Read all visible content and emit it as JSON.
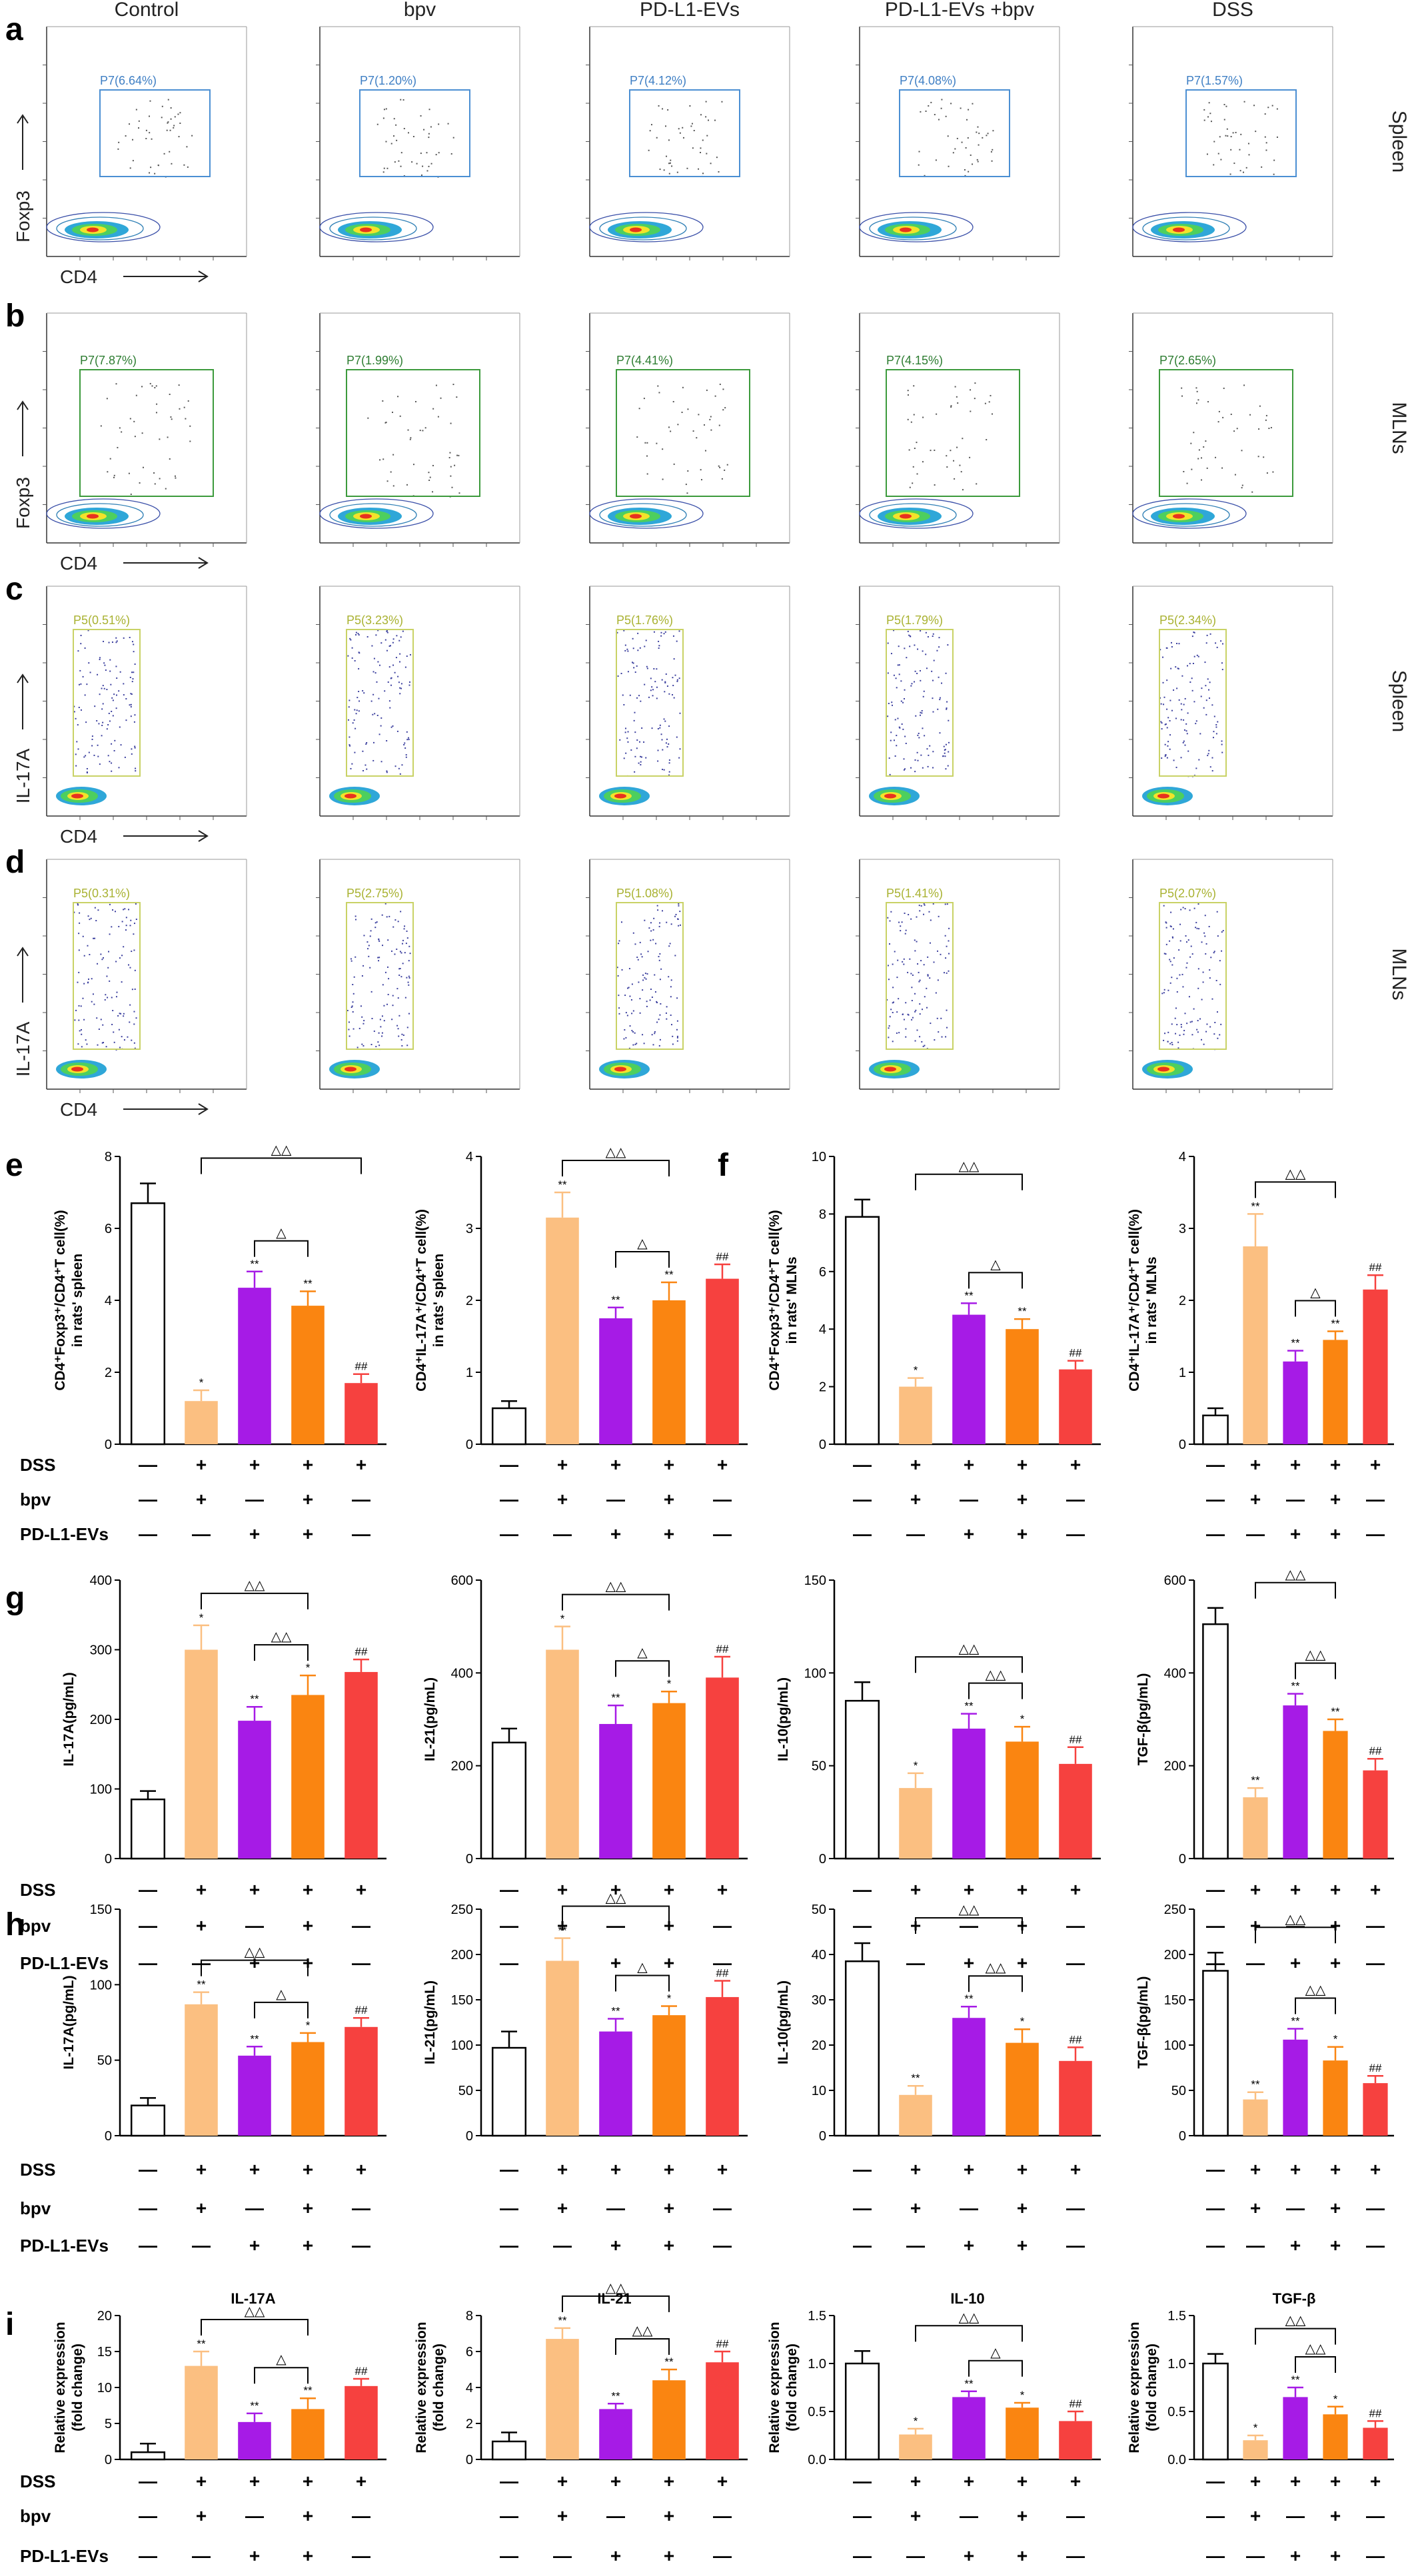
{
  "colors": {
    "control": "#ffffff",
    "bpv": "#fbbf81",
    "pdl1": "#a61be6",
    "pdl1_bpv": "#fa8511",
    "dss": "#f6413f",
    "gate_blue": "#4b8fd3",
    "gate_green": "#3c9a3c",
    "gate_yellow": "#c9d266",
    "label_blue": "#3f7fc4",
    "label_green": "#2e7d32",
    "label_yellow": "#a9b232"
  },
  "flow": {
    "column_titles": [
      "Control",
      "bpv",
      "PD-L1-EVs",
      "PD-L1-EVs +bpv",
      "DSS"
    ],
    "x_axis_label": "CD4",
    "rows": [
      {
        "letter": "a",
        "y_label": "Foxp3",
        "tissue": "Spleen",
        "gate_color": "blue",
        "gates": [
          "P7(6.64%)",
          "P7(1.20%)",
          "P7(4.12%)",
          "P7(4.08%)",
          "P7(1.57%)"
        ]
      },
      {
        "letter": "b",
        "y_label": "Foxp3",
        "tissue": "MLNs",
        "gate_color": "green",
        "gates": [
          "P7(7.87%)",
          "P7(1.99%)",
          "P7(4.41%)",
          "P7(4.15%)",
          "P7(2.65%)"
        ]
      },
      {
        "letter": "c",
        "y_label": "IL-17A",
        "tissue": "Spleen",
        "gate_color": "yellow",
        "gates": [
          "P5(0.51%)",
          "P5(3.23%)",
          "P5(1.76%)",
          "P5(1.79%)",
          "P5(2.34%)"
        ]
      },
      {
        "letter": "d",
        "y_label": "IL-17A",
        "tissue": "MLNs",
        "gate_color": "yellow",
        "gates": [
          "P5(0.31%)",
          "P5(2.75%)",
          "P5(1.08%)",
          "P5(1.41%)",
          "P5(2.07%)"
        ]
      }
    ]
  },
  "chart_data": [
    {
      "type": "bar",
      "panel": "e",
      "ylabel_lines": [
        "CD4⁺Foxp3⁺/CD4⁺T cell(%)",
        "in rats' spleen"
      ],
      "ylim": [
        0,
        8
      ],
      "yticks": [
        0,
        2,
        4,
        6,
        8
      ],
      "series": [
        {
          "values": [
            6.7,
            1.2,
            4.35,
            3.85,
            1.7
          ],
          "errors": [
            0.55,
            0.3,
            0.45,
            0.4,
            0.25
          ]
        }
      ],
      "star_labels": [
        "",
        "*",
        "**",
        "**",
        "##"
      ],
      "brackets": [
        {
          "from": 1,
          "to": 4,
          "label": "△△"
        },
        {
          "from": 2,
          "to": 3,
          "label": "△"
        }
      ]
    },
    {
      "type": "bar",
      "panel": "e2",
      "ylabel_lines": [
        "CD4⁺IL-17A⁺/CD4⁺T cell(%)",
        "in rats' spleen"
      ],
      "ylim": [
        0,
        4
      ],
      "yticks": [
        0,
        1,
        2,
        3,
        4
      ],
      "series": [
        {
          "values": [
            0.5,
            3.15,
            1.75,
            2.0,
            2.3
          ],
          "errors": [
            0.1,
            0.35,
            0.15,
            0.25,
            0.2
          ]
        }
      ],
      "star_labels": [
        "",
        "**",
        "**",
        "**",
        "##"
      ],
      "brackets": [
        {
          "from": 1,
          "to": 3,
          "label": "△△"
        },
        {
          "from": 2,
          "to": 3,
          "label": "△"
        }
      ]
    },
    {
      "type": "bar",
      "panel": "f",
      "ylabel_lines": [
        "CD4⁺Foxp3⁺/CD4⁺T cell(%)",
        "in rats' MLNs"
      ],
      "ylim": [
        0,
        10
      ],
      "yticks": [
        0,
        2,
        4,
        6,
        8,
        10
      ],
      "series": [
        {
          "values": [
            7.9,
            2.0,
            4.5,
            4.0,
            2.6
          ],
          "errors": [
            0.6,
            0.3,
            0.4,
            0.35,
            0.3
          ]
        }
      ],
      "star_labels": [
        "",
        "*",
        "**",
        "**",
        "##"
      ],
      "brackets": [
        {
          "from": 1,
          "to": 3,
          "label": "△△"
        },
        {
          "from": 2,
          "to": 3,
          "label": "△"
        }
      ]
    },
    {
      "type": "bar",
      "panel": "f2",
      "ylabel_lines": [
        "CD4⁺IL-17A⁺/CD4⁺T cell(%)",
        "in rats' MLNs"
      ],
      "ylim": [
        0,
        4
      ],
      "yticks": [
        0,
        1,
        2,
        3,
        4
      ],
      "series": [
        {
          "values": [
            0.4,
            2.75,
            1.15,
            1.45,
            2.15
          ],
          "errors": [
            0.1,
            0.45,
            0.15,
            0.12,
            0.2
          ]
        }
      ],
      "star_labels": [
        "",
        "**",
        "**",
        "**",
        "##"
      ],
      "brackets": [
        {
          "from": 1,
          "to": 3,
          "label": "△△"
        },
        {
          "from": 2,
          "to": 3,
          "label": "△"
        }
      ]
    },
    {
      "type": "bar",
      "panel": "g",
      "ylabel_lines": [
        "IL-17A(pg/mL)"
      ],
      "ylim": [
        0,
        400
      ],
      "yticks": [
        0,
        100,
        200,
        300,
        400
      ],
      "series": [
        {
          "values": [
            85,
            300,
            198,
            235,
            268
          ],
          "errors": [
            12,
            35,
            20,
            28,
            18
          ]
        }
      ],
      "star_labels": [
        "",
        "*",
        "**",
        "*",
        "##"
      ],
      "brackets": [
        {
          "from": 1,
          "to": 3,
          "label": "△△"
        },
        {
          "from": 2,
          "to": 3,
          "label": "△△"
        }
      ]
    },
    {
      "type": "bar",
      "panel": "g2",
      "ylabel_lines": [
        "IL-21(pg/mL)"
      ],
      "ylim": [
        0,
        600
      ],
      "yticks": [
        0,
        200,
        400,
        600
      ],
      "series": [
        {
          "values": [
            250,
            450,
            290,
            335,
            390
          ],
          "errors": [
            30,
            50,
            40,
            25,
            45
          ]
        }
      ],
      "star_labels": [
        "",
        "*",
        "**",
        "*",
        "##"
      ],
      "brackets": [
        {
          "from": 1,
          "to": 3,
          "label": "△△"
        },
        {
          "from": 2,
          "to": 3,
          "label": "△"
        }
      ]
    },
    {
      "type": "bar",
      "panel": "g3",
      "ylabel_lines": [
        "IL-10(pg/mL)"
      ],
      "ylim": [
        0,
        150
      ],
      "yticks": [
        0,
        50,
        100,
        150
      ],
      "series": [
        {
          "values": [
            85,
            38,
            70,
            63,
            51
          ],
          "errors": [
            10,
            8,
            8,
            8,
            9
          ]
        }
      ],
      "star_labels": [
        "",
        "*",
        "**",
        "*",
        "##"
      ],
      "brackets": [
        {
          "from": 1,
          "to": 3,
          "label": "△△"
        },
        {
          "from": 2,
          "to": 3,
          "label": "△△"
        }
      ]
    },
    {
      "type": "bar",
      "panel": "g4",
      "ylabel_lines": [
        "TGF-β(pg/mL)"
      ],
      "ylim": [
        0,
        600
      ],
      "yticks": [
        0,
        200,
        400,
        600
      ],
      "series": [
        {
          "values": [
            505,
            132,
            330,
            275,
            190
          ],
          "errors": [
            35,
            20,
            25,
            25,
            25
          ]
        }
      ],
      "star_labels": [
        "",
        "**",
        "**",
        "**",
        "##"
      ],
      "brackets": [
        {
          "from": 1,
          "to": 3,
          "label": "△△"
        },
        {
          "from": 2,
          "to": 3,
          "label": "△△"
        }
      ]
    },
    {
      "type": "bar",
      "panel": "h",
      "ylabel_lines": [
        "IL-17A(pg/mL)"
      ],
      "ylim": [
        0,
        150
      ],
      "yticks": [
        0,
        50,
        100,
        150
      ],
      "series": [
        {
          "values": [
            20,
            87,
            53,
            62,
            72
          ],
          "errors": [
            5,
            8,
            6,
            6,
            6
          ]
        }
      ],
      "star_labels": [
        "",
        "**",
        "**",
        "*",
        "##"
      ],
      "brackets": [
        {
          "from": 1,
          "to": 3,
          "label": "△△"
        },
        {
          "from": 2,
          "to": 3,
          "label": "△"
        }
      ]
    },
    {
      "type": "bar",
      "panel": "h2",
      "ylabel_lines": [
        "IL-21(pg/mL)"
      ],
      "ylim": [
        0,
        250
      ],
      "yticks": [
        0,
        50,
        100,
        150,
        200,
        250
      ],
      "series": [
        {
          "values": [
            97,
            193,
            115,
            133,
            153
          ],
          "errors": [
            18,
            25,
            14,
            10,
            18
          ]
        }
      ],
      "star_labels": [
        "",
        "**",
        "**",
        "*",
        "##"
      ],
      "brackets": [
        {
          "from": 1,
          "to": 3,
          "label": "△△"
        },
        {
          "from": 2,
          "to": 3,
          "label": "△"
        }
      ]
    },
    {
      "type": "bar",
      "panel": "h3",
      "ylabel_lines": [
        "IL-10(pg/mL)"
      ],
      "ylim": [
        0,
        50
      ],
      "yticks": [
        0,
        10,
        20,
        30,
        40,
        50
      ],
      "series": [
        {
          "values": [
            38.5,
            9,
            26,
            20.5,
            16.5
          ],
          "errors": [
            4,
            2,
            2.5,
            3,
            3
          ]
        }
      ],
      "star_labels": [
        "",
        "**",
        "**",
        "*",
        "##"
      ],
      "brackets": [
        {
          "from": 1,
          "to": 3,
          "label": "△△"
        },
        {
          "from": 2,
          "to": 3,
          "label": "△△"
        }
      ]
    },
    {
      "type": "bar",
      "panel": "h4",
      "ylabel_lines": [
        "TGF-β(pg/mL)"
      ],
      "ylim": [
        0,
        250
      ],
      "yticks": [
        0,
        50,
        100,
        150,
        200,
        250
      ],
      "series": [
        {
          "values": [
            182,
            40,
            106,
            83,
            58
          ],
          "errors": [
            20,
            8,
            12,
            15,
            8
          ]
        }
      ],
      "star_labels": [
        "",
        "**",
        "**",
        "*",
        "##"
      ],
      "brackets": [
        {
          "from": 1,
          "to": 3,
          "label": "△△"
        },
        {
          "from": 2,
          "to": 3,
          "label": "△△"
        }
      ]
    },
    {
      "type": "bar",
      "panel": "i",
      "title": "IL-17A",
      "ylabel_lines": [
        "Relative expression",
        "(fold change)"
      ],
      "ylim": [
        0,
        20
      ],
      "yticks": [
        0,
        5,
        10,
        15,
        20
      ],
      "series": [
        {
          "values": [
            1,
            13,
            5.2,
            7,
            10.2
          ],
          "errors": [
            1.2,
            2,
            1.2,
            1.5,
            1
          ]
        }
      ],
      "star_labels": [
        "",
        "**",
        "**",
        "**",
        "##"
      ],
      "brackets": [
        {
          "from": 1,
          "to": 3,
          "label": "△△"
        },
        {
          "from": 2,
          "to": 3,
          "label": "△"
        }
      ]
    },
    {
      "type": "bar",
      "panel": "i2",
      "title": "IL-21",
      "ylabel_lines": [
        "Relative expression",
        "(fold change)"
      ],
      "ylim": [
        0,
        8
      ],
      "yticks": [
        0,
        2,
        4,
        6,
        8
      ],
      "series": [
        {
          "values": [
            1,
            6.7,
            2.8,
            4.4,
            5.4
          ],
          "errors": [
            0.5,
            0.6,
            0.3,
            0.6,
            0.6
          ]
        }
      ],
      "star_labels": [
        "",
        "**",
        "**",
        "**",
        "##"
      ],
      "brackets": [
        {
          "from": 1,
          "to": 3,
          "label": "△△"
        },
        {
          "from": 2,
          "to": 3,
          "label": "△△"
        }
      ]
    },
    {
      "type": "bar",
      "panel": "i3",
      "title": "IL-10",
      "ylabel_lines": [
        "Relative expression",
        "(fold change)"
      ],
      "ylim": [
        0,
        1.5
      ],
      "yticks": [
        0.0,
        0.5,
        1.0,
        1.5
      ],
      "series": [
        {
          "values": [
            1.0,
            0.26,
            0.65,
            0.54,
            0.4
          ],
          "errors": [
            0.13,
            0.06,
            0.06,
            0.05,
            0.1
          ]
        }
      ],
      "star_labels": [
        "",
        "*",
        "**",
        "*",
        "##"
      ],
      "brackets": [
        {
          "from": 1,
          "to": 3,
          "label": "△△"
        },
        {
          "from": 2,
          "to": 3,
          "label": "△"
        }
      ]
    },
    {
      "type": "bar",
      "panel": "i4",
      "title": "TGF-β",
      "ylabel_lines": [
        "Relative expression",
        "(fold change)"
      ],
      "ylim": [
        0,
        1.5
      ],
      "yticks": [
        0.0,
        0.5,
        1.0,
        1.5
      ],
      "series": [
        {
          "values": [
            1.0,
            0.2,
            0.65,
            0.47,
            0.33
          ],
          "errors": [
            0.1,
            0.05,
            0.1,
            0.08,
            0.07
          ]
        }
      ],
      "star_labels": [
        "",
        "*",
        "**",
        "*",
        "##"
      ],
      "brackets": [
        {
          "from": 1,
          "to": 3,
          "label": "△△"
        },
        {
          "from": 2,
          "to": 3,
          "label": "△△"
        }
      ]
    }
  ],
  "conditions": {
    "labels": [
      "DSS",
      "bpv",
      "PD-L1-EVs"
    ],
    "rows": [
      [
        "—",
        "+",
        "+",
        "+",
        "+"
      ],
      [
        "—",
        "+",
        "—",
        "+",
        "—"
      ],
      [
        "—",
        "—",
        "+",
        "+",
        "—"
      ]
    ]
  },
  "panel_letters": {
    "e": "e",
    "f": "f",
    "g": "g",
    "h": "h",
    "i": "i"
  }
}
